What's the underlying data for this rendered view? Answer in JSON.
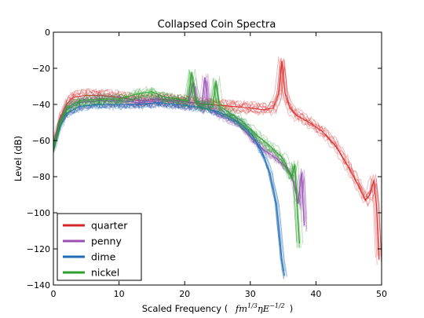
{
  "chart_data": {
    "type": "line",
    "title": "Collapsed Coin Spectra",
    "xlabel": "Scaled Frequency (",
    "xlabel_math": "fm",
    "xlabel_math_sup1": "1/3",
    "xlabel_math_mid": "ηE",
    "xlabel_math_sup2": "−1/2",
    "xlabel_close": ")",
    "ylabel": "Level (dB)",
    "xlim": [
      0,
      50
    ],
    "ylim": [
      -140,
      0
    ],
    "xticks": [
      "0",
      "10",
      "20",
      "30",
      "40",
      "50"
    ],
    "yticks": [
      "0",
      "−20",
      "−40",
      "−60",
      "−80",
      "−100",
      "−120",
      "−140"
    ],
    "xtick_values": [
      0,
      10,
      20,
      30,
      40,
      50
    ],
    "ytick_values": [
      0,
      -20,
      -40,
      -60,
      -80,
      -100,
      -120,
      -140
    ],
    "grid": false,
    "legend_position": "bottom-left",
    "traces_per_series": 10,
    "series": [
      {
        "name": "quarter",
        "color": "#d62728",
        "points": [
          [
            0,
            -62
          ],
          [
            1,
            -48
          ],
          [
            2,
            -40
          ],
          [
            3,
            -36
          ],
          [
            5,
            -35
          ],
          [
            7,
            -35
          ],
          [
            10,
            -36
          ],
          [
            13,
            -38
          ],
          [
            16,
            -37
          ],
          [
            19,
            -38
          ],
          [
            21,
            -39
          ],
          [
            24,
            -40
          ],
          [
            27,
            -41
          ],
          [
            30,
            -42
          ],
          [
            32,
            -43
          ],
          [
            33.5,
            -42
          ],
          [
            34.3,
            -34
          ],
          [
            34.8,
            -16
          ],
          [
            35.3,
            -34
          ],
          [
            36,
            -42
          ],
          [
            37,
            -46
          ],
          [
            39,
            -50
          ],
          [
            41,
            -55
          ],
          [
            43,
            -63
          ],
          [
            45,
            -75
          ],
          [
            46.5,
            -85
          ],
          [
            47.5,
            -93
          ],
          [
            48.2,
            -90
          ],
          [
            48.8,
            -82
          ],
          [
            49.2,
            -95
          ],
          [
            49.6,
            -126
          ]
        ]
      },
      {
        "name": "penny",
        "color": "#9b4fb5",
        "points": [
          [
            0,
            -63
          ],
          [
            1,
            -50
          ],
          [
            2,
            -43
          ],
          [
            4,
            -39
          ],
          [
            7,
            -38
          ],
          [
            10,
            -38
          ],
          [
            13,
            -39
          ],
          [
            16,
            -38
          ],
          [
            19,
            -39
          ],
          [
            20.5,
            -40
          ],
          [
            21.3,
            -28
          ],
          [
            21.9,
            -40
          ],
          [
            22.6,
            -42
          ],
          [
            23.1,
            -25
          ],
          [
            23.6,
            -42
          ],
          [
            25,
            -45
          ],
          [
            28,
            -50
          ],
          [
            30,
            -58
          ],
          [
            32,
            -65
          ],
          [
            34,
            -70
          ],
          [
            35.5,
            -75
          ],
          [
            36.5,
            -82
          ],
          [
            37.3,
            -95
          ],
          [
            37.8,
            -78
          ],
          [
            38.2,
            -107
          ]
        ]
      },
      {
        "name": "dime",
        "color": "#1f6eb5",
        "points": [
          [
            0,
            -65
          ],
          [
            1,
            -52
          ],
          [
            2,
            -45
          ],
          [
            4,
            -41
          ],
          [
            7,
            -40
          ],
          [
            10,
            -40
          ],
          [
            13,
            -40
          ],
          [
            16,
            -39
          ],
          [
            19,
            -40
          ],
          [
            21,
            -41
          ],
          [
            23,
            -42
          ],
          [
            25,
            -44
          ],
          [
            27,
            -47
          ],
          [
            29,
            -52
          ],
          [
            30.5,
            -58
          ],
          [
            32,
            -68
          ],
          [
            33,
            -78
          ],
          [
            34,
            -95
          ],
          [
            34.8,
            -125
          ],
          [
            35.2,
            -135
          ]
        ]
      },
      {
        "name": "nickel",
        "color": "#2ca02c",
        "points": [
          [
            0,
            -64
          ],
          [
            1,
            -50
          ],
          [
            2,
            -42
          ],
          [
            4,
            -38
          ],
          [
            7,
            -37
          ],
          [
            10,
            -37
          ],
          [
            13,
            -34
          ],
          [
            15,
            -33
          ],
          [
            17,
            -36
          ],
          [
            19,
            -37
          ],
          [
            20.5,
            -38
          ],
          [
            21.1,
            -22
          ],
          [
            21.7,
            -38
          ],
          [
            22.5,
            -40
          ],
          [
            24.3,
            -40
          ],
          [
            24.8,
            -27
          ],
          [
            25.3,
            -41
          ],
          [
            27,
            -45
          ],
          [
            29,
            -50
          ],
          [
            31,
            -57
          ],
          [
            33,
            -63
          ],
          [
            35,
            -70
          ],
          [
            36.3,
            -80
          ],
          [
            36.8,
            -73
          ],
          [
            37.2,
            -100
          ],
          [
            37.5,
            -117
          ]
        ]
      }
    ]
  }
}
